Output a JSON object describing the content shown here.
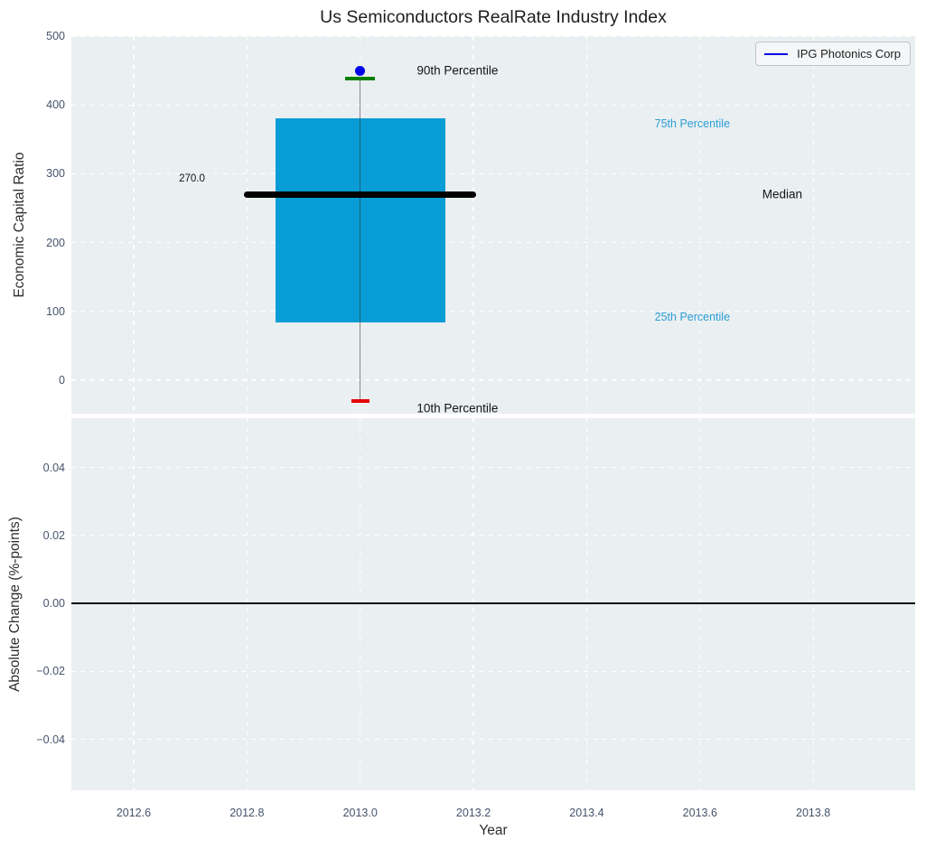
{
  "figure": {
    "background": "#ffffff",
    "plot_background": "#eaeff1",
    "tick_color": "#46536b",
    "text_color": "#2e2e2e"
  },
  "chart_data": [
    {
      "type": "box",
      "title": "Us Semiconductors RealRate Industry Index",
      "ylabel": "Economic Capital Ratio",
      "grid": true,
      "xlim": [
        2012.49,
        2013.98
      ],
      "ylim": [
        -48.6,
        500
      ],
      "ytick_values": [
        0,
        100,
        200,
        300,
        400,
        500
      ],
      "ytick_labels": [
        "0",
        "100",
        "200",
        "300",
        "400",
        "500"
      ],
      "box": {
        "x_center": 2013.0,
        "p10": -30,
        "p25": 84,
        "median": 270,
        "p75": 380,
        "p90": 438,
        "company_value": 449,
        "median_label": "270.0",
        "box_halfwidth": 0.15,
        "median_halfwidth": 0.205,
        "cap90_halfwidth": 0.026,
        "cap10_halfwidth": 0.016
      },
      "legend": {
        "label": "IPG Photonics Corp",
        "line_color": "#0000dd",
        "position": "upper right"
      },
      "annotations": [
        {
          "text": "90th Percentile",
          "x": 2013.1,
          "y": 450,
          "color": "#141414",
          "size": 13.5
        },
        {
          "text": "75th Percentile",
          "x": 2013.52,
          "y": 373,
          "color": "#2b9fd6",
          "size": 12.5
        },
        {
          "text": "Median",
          "x": 2013.71,
          "y": 270,
          "color": "#141414",
          "size": 13.5
        },
        {
          "text": "25th Percentile",
          "x": 2013.52,
          "y": 92,
          "color": "#2b9fd6",
          "size": 12.5
        },
        {
          "text": "10th Percentile",
          "x": 2013.1,
          "y": -41,
          "color": "#141414",
          "size": 13.5
        },
        {
          "text": "270.0",
          "x": 2012.68,
          "y": 293,
          "color": "#141414",
          "size": 11.5
        }
      ],
      "colors": {
        "box_fill": "#089dd4",
        "median_line": "#000000",
        "whisker": "rgba(45,45,45,0.55)",
        "cap_p90": "#007f00",
        "cap_p10": "#e60000",
        "marker": "#0000e8"
      }
    },
    {
      "type": "line",
      "ylabel": "Absolute Change (%-points)",
      "xlabel": "Year",
      "grid": true,
      "xlim": [
        2012.49,
        2013.98
      ],
      "ylim": [
        -0.055,
        0.0545
      ],
      "ytick_values": [
        0.04,
        0.02,
        0.0,
        -0.02,
        -0.04
      ],
      "ytick_labels": [
        "0.04",
        "0.02",
        "0.00",
        "−0.02",
        "−0.04"
      ],
      "xtick_values": [
        2012.6,
        2012.8,
        2013.0,
        2013.2,
        2013.4,
        2013.6,
        2013.8
      ],
      "xtick_labels": [
        "2012.6",
        "2012.8",
        "2013.0",
        "2013.2",
        "2013.4",
        "2013.6",
        "2013.8"
      ],
      "zero_line": {
        "y": 0.0,
        "color": "#000000"
      }
    }
  ]
}
